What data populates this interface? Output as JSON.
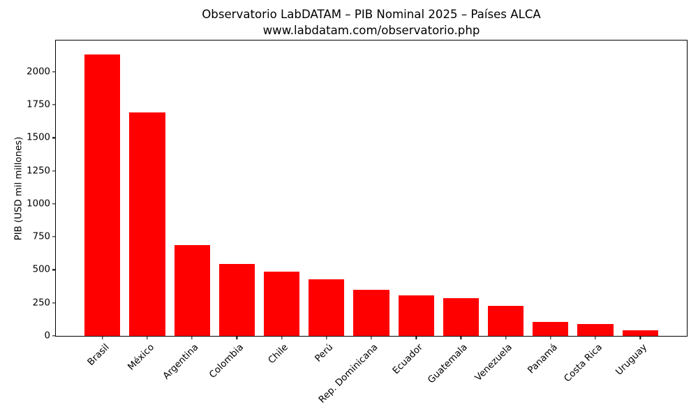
{
  "chart_data": {
    "type": "bar",
    "title": "Observatorio LabDATAM – PIB Nominal 2025 – Países ALCA",
    "subtitle": "www.labdatam.com/observatorio.php",
    "categories": [
      "Brasil",
      "México",
      "Argentina",
      "Colombia",
      "Chile",
      "Perú",
      "Rep. Dominicana",
      "Ecuador",
      "Guatemala",
      "Venezuela",
      "Panamá",
      "Costa Rica",
      "Uruguay"
    ],
    "values": [
      2130,
      1690,
      685,
      545,
      485,
      430,
      350,
      305,
      285,
      225,
      105,
      92,
      40
    ],
    "xlabel": "",
    "ylabel": "PIB (USD mil millones)",
    "yticks": [
      0,
      250,
      500,
      750,
      1000,
      1250,
      1500,
      1750,
      2000
    ],
    "ylim": [
      0,
      2236
    ],
    "bar_color": "#ff0000",
    "background_color": "#ffffff",
    "text_color": "#000000",
    "grid": false,
    "legend": "none",
    "x_tick_rotation": 45
  }
}
